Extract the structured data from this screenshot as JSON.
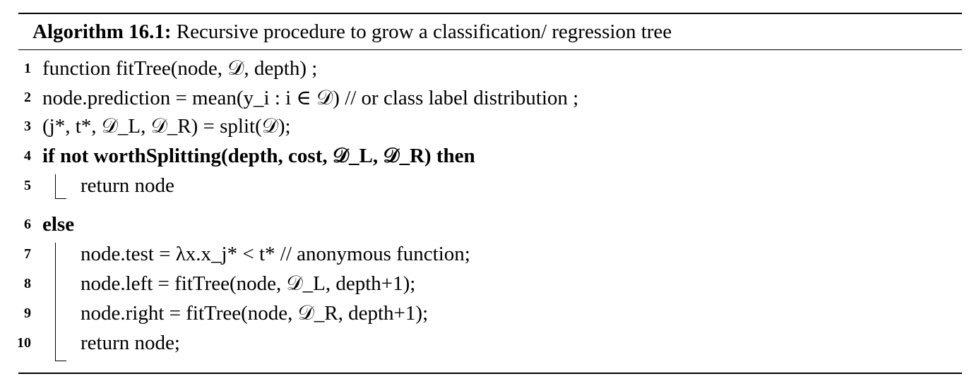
{
  "algorithm": {
    "label": "Algorithm 16.1:",
    "title": "Recursive procedure to grow a classification/ regression tree"
  },
  "lines": [
    {
      "num": "1",
      "text": "function fitTree(node, 𝒟, depth) ;"
    },
    {
      "num": "2",
      "text": "node.prediction = mean(y_i : i ∈ 𝒟) // or class label distribution ;"
    },
    {
      "num": "3",
      "text": "(j*, t*, 𝒟_L, 𝒟_R) = split(𝒟);"
    },
    {
      "num": "4",
      "text": "if not worthSplitting(depth, cost, 𝒟_L, 𝒟_R) then"
    },
    {
      "num": "5",
      "text": "return node"
    },
    {
      "num": "6",
      "text": "else"
    },
    {
      "num": "7",
      "text": "node.test = λx.x_j* < t* // anonymous function;"
    },
    {
      "num": "8",
      "text": "node.left = fitTree(node, 𝒟_L, depth+1);"
    },
    {
      "num": "9",
      "text": "node.right = fitTree(node, 𝒟_R, depth+1);"
    },
    {
      "num": "10",
      "text": "return node;"
    }
  ]
}
